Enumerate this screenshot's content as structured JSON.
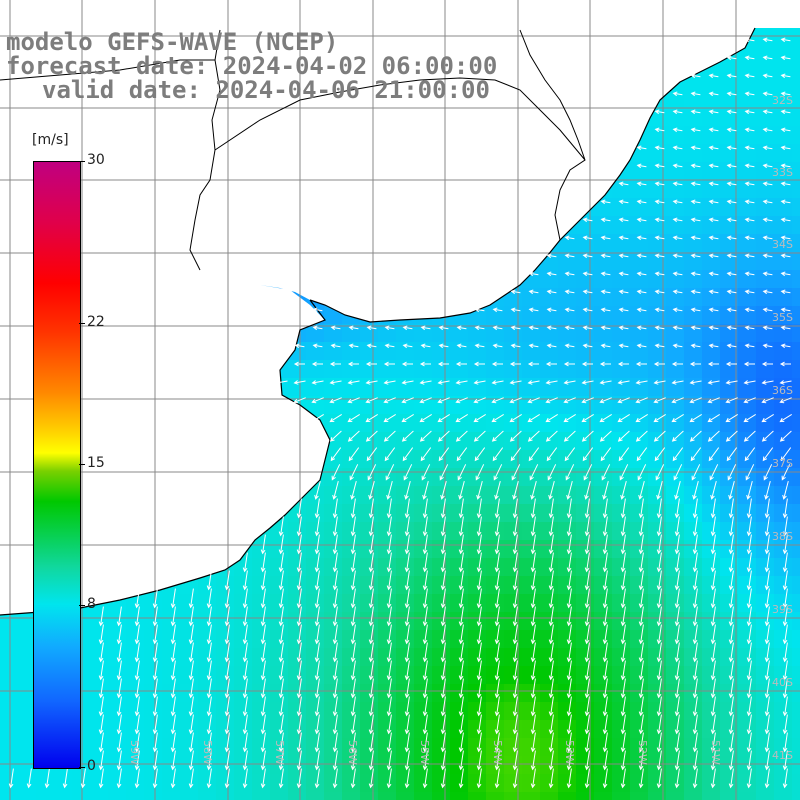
{
  "title": {
    "line1": "modelo GEFS-WAVE (NCEP)",
    "line2": "forecast date: 2024-04-02 06:00:00",
    "line3": "valid date: 2024-04-06 21:00:00"
  },
  "colorbar": {
    "unit": "[m/s]",
    "ticks": [
      "30",
      "22",
      "15",
      "8",
      "0"
    ],
    "tick_values": [
      30,
      22,
      15,
      8,
      0
    ],
    "min": 0,
    "max": 30,
    "colors": [
      "#0000ee",
      "#1166ff",
      "#11aaff",
      "#00e5ee",
      "#10d8a0",
      "#00c800",
      "#ffff00",
      "#ff8800",
      "#ff0000",
      "#c00080"
    ]
  },
  "map": {
    "lat_labels": [
      "32S",
      "33S",
      "34S",
      "35S",
      "36S",
      "37S",
      "38S",
      "39S",
      "40S",
      "41S"
    ],
    "lon_labels": [
      "61W",
      "60W",
      "59W",
      "58W",
      "57W",
      "56W",
      "55W",
      "54W",
      "53W",
      "52W",
      "51W"
    ],
    "land_color": "#ffffff",
    "grid_color": "#888888",
    "coast_color": "#000000",
    "arrow_color": "#ffffff"
  }
}
